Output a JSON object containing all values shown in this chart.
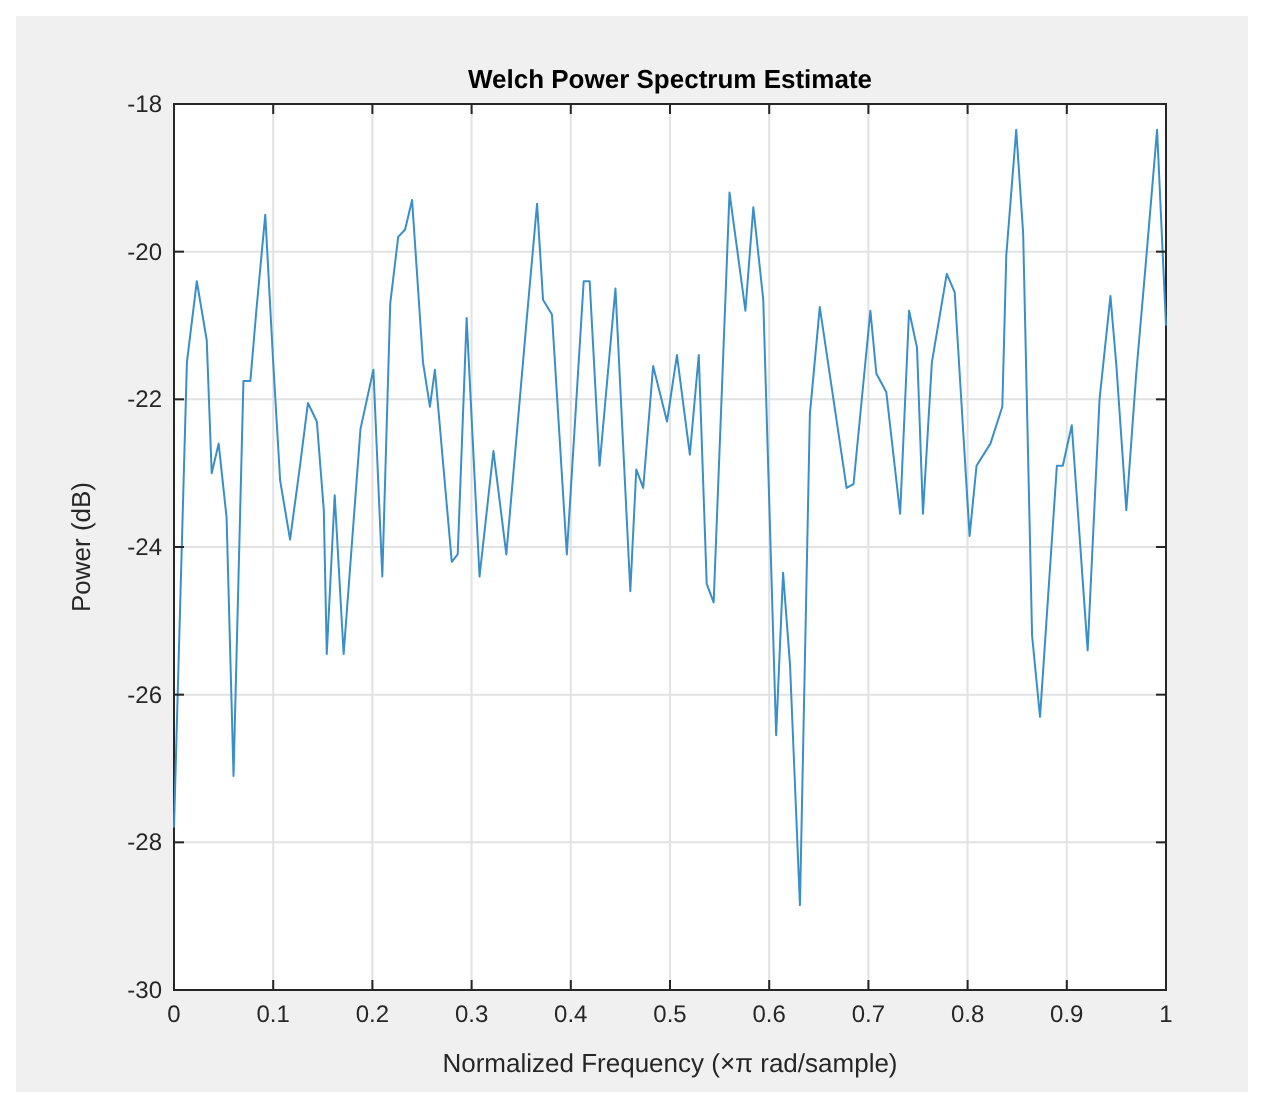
{
  "chart_data": {
    "type": "line",
    "title": "Welch Power Spectrum Estimate",
    "xlabel": "Normalized Frequency  (×π rad/sample)",
    "ylabel": "Power (dB)",
    "xlim": [
      0,
      1
    ],
    "ylim": [
      -30,
      -18
    ],
    "xticks": [
      0,
      0.1,
      0.2,
      0.3,
      0.4,
      0.5,
      0.6,
      0.7,
      0.8,
      0.9,
      1
    ],
    "yticks": [
      -30,
      -28,
      -26,
      -24,
      -22,
      -20,
      -18
    ],
    "grid": true,
    "series": [
      {
        "color": "#3a8fc9",
        "x": [
          0,
          0.013,
          0.023,
          0.033,
          0.038,
          0.045,
          0.053,
          0.06,
          0.07,
          0.077,
          0.083,
          0.092,
          0.1,
          0.107,
          0.117,
          0.127,
          0.135,
          0.144,
          0.151,
          0.154,
          0.162,
          0.171,
          0.188,
          0.201,
          0.21,
          0.218,
          0.226,
          0.233,
          0.24,
          0.251,
          0.258,
          0.263,
          0.28,
          0.286,
          0.295,
          0.308,
          0.322,
          0.335,
          0.356,
          0.366,
          0.372,
          0.381,
          0.396,
          0.413,
          0.419,
          0.429,
          0.445,
          0.46,
          0.466,
          0.473,
          0.483,
          0.497,
          0.507,
          0.52,
          0.529,
          0.537,
          0.544,
          0.56,
          0.576,
          0.584,
          0.594,
          0.607,
          0.614,
          0.621,
          0.631,
          0.641,
          0.651,
          0.678,
          0.685,
          0.702,
          0.708,
          0.718,
          0.732,
          0.741,
          0.749,
          0.755,
          0.764,
          0.779,
          0.787,
          0.802,
          0.809,
          0.823,
          0.835,
          0.839,
          0.849,
          0.856,
          0.865,
          0.873,
          0.89,
          0.896,
          0.905,
          0.921,
          0.933,
          0.944,
          0.95,
          0.96,
          0.97,
          0.98,
          0.991,
          1
        ],
        "values": [
          -27.8,
          -21.5,
          -20.4,
          -21.2,
          -23.0,
          -22.6,
          -23.6,
          -27.1,
          -21.75,
          -21.75,
          -20.8,
          -19.5,
          -21.5,
          -23.1,
          -23.9,
          -22.9,
          -22.05,
          -22.3,
          -23.5,
          -25.45,
          -23.3,
          -25.45,
          -22.4,
          -21.6,
          -24.4,
          -20.7,
          -19.8,
          -19.7,
          -19.3,
          -21.5,
          -22.1,
          -21.6,
          -24.2,
          -24.1,
          -20.9,
          -24.4,
          -22.7,
          -24.1,
          -20.85,
          -19.35,
          -20.65,
          -20.85,
          -24.1,
          -20.4,
          -20.4,
          -22.9,
          -20.5,
          -24.6,
          -22.95,
          -23.2,
          -21.55,
          -22.3,
          -21.4,
          -22.75,
          -21.4,
          -24.5,
          -24.75,
          -19.2,
          -20.8,
          -19.4,
          -20.65,
          -26.55,
          -24.35,
          -25.6,
          -28.85,
          -22.2,
          -20.75,
          -23.2,
          -23.15,
          -20.8,
          -21.65,
          -21.9,
          -23.55,
          -20.8,
          -21.3,
          -23.55,
          -21.5,
          -20.3,
          -20.55,
          -23.85,
          -22.9,
          -22.6,
          -22.1,
          -20.05,
          -18.35,
          -19.75,
          -25.2,
          -26.3,
          -22.9,
          -22.9,
          -22.35,
          -25.4,
          -22.0,
          -20.6,
          -21.55,
          -23.5,
          -21.65,
          -20.1,
          -18.35,
          -21.0
        ]
      }
    ]
  }
}
